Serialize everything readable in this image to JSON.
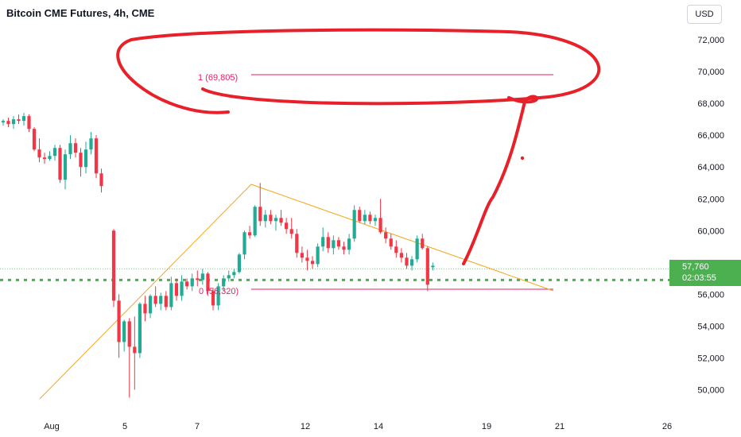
{
  "header": {
    "title": "Bitcoin CME Futures, 4h, CME",
    "currency_button": "USD"
  },
  "price_tag": {
    "price": "57,760",
    "countdown": "02:03:55"
  },
  "colors": {
    "up": "#22ab94",
    "down": "#f23645",
    "trendline": "#f7a520",
    "fib": "#e91e63",
    "current_price_line": "#4caf50",
    "annotation": "#e8202a"
  },
  "fib_labels": {
    "level1": "1 (69,805)",
    "level0": "0 (56,320)"
  },
  "chart_data": {
    "type": "candlestick",
    "title": "Bitcoin CME Futures, 4h, CME",
    "x_ticks": [
      "Aug",
      "5",
      "7",
      "12",
      "14",
      "19",
      "21",
      "26"
    ],
    "y_ticks": [
      "50,000",
      "52,000",
      "54,000",
      "56,000",
      "58,000",
      "60,000",
      "62,000",
      "64,000",
      "66,000",
      "68,000",
      "70,000",
      "72,000"
    ],
    "ylim": [
      49000,
      73000
    ],
    "current_price": 57760,
    "fib_levels": [
      {
        "label": "1 (69,805)",
        "price": 69805
      },
      {
        "label": "0 (56,320)",
        "price": 56320
      }
    ],
    "candles": [
      [
        66.8,
        67.0,
        66.6,
        66.9
      ],
      [
        66.9,
        67.1,
        66.5,
        66.7
      ],
      [
        66.7,
        67.2,
        66.4,
        67.0
      ],
      [
        67.0,
        67.3,
        66.7,
        66.9
      ],
      [
        66.9,
        67.4,
        66.6,
        67.2
      ],
      [
        67.2,
        67.3,
        66.2,
        66.4
      ],
      [
        66.4,
        66.5,
        65.0,
        65.1
      ],
      [
        65.1,
        65.8,
        64.3,
        64.6
      ],
      [
        64.6,
        64.9,
        64.2,
        64.5
      ],
      [
        64.5,
        65.0,
        64.4,
        64.7
      ],
      [
        64.7,
        65.4,
        64.4,
        65.2
      ],
      [
        65.2,
        65.4,
        63.0,
        63.2
      ],
      [
        63.2,
        65.1,
        62.6,
        64.8
      ],
      [
        64.8,
        66.0,
        64.5,
        65.5
      ],
      [
        65.5,
        65.8,
        64.6,
        64.9
      ],
      [
        64.9,
        65.2,
        63.4,
        64.0
      ],
      [
        64.0,
        65.6,
        63.6,
        65.1
      ],
      [
        65.1,
        66.2,
        64.8,
        65.8
      ],
      [
        65.8,
        66.0,
        63.3,
        63.6
      ],
      [
        63.6,
        63.9,
        62.4,
        62.8
      ],
      [
        60.0,
        60.1,
        55.2,
        55.6
      ],
      [
        55.6,
        56.0,
        52.0,
        53.0
      ],
      [
        53.0,
        54.4,
        52.4,
        54.3
      ],
      [
        54.3,
        54.5,
        49.5,
        52.7
      ],
      [
        52.7,
        54.6,
        50.0,
        52.3
      ],
      [
        52.3,
        55.5,
        52.0,
        55.4
      ],
      [
        55.4,
        55.9,
        54.3,
        54.8
      ],
      [
        54.8,
        56.0,
        54.5,
        55.9
      ],
      [
        55.9,
        56.5,
        55.2,
        55.4
      ],
      [
        55.4,
        56.1,
        55.0,
        55.9
      ],
      [
        55.9,
        56.2,
        55.0,
        55.2
      ],
      [
        55.2,
        57.1,
        55.0,
        56.7
      ],
      [
        56.7,
        57.0,
        55.6,
        55.9
      ],
      [
        55.9,
        57.2,
        55.6,
        56.8
      ],
      [
        56.8,
        57.0,
        56.3,
        56.5
      ],
      [
        56.5,
        57.3,
        56.2,
        57.0
      ],
      [
        57.0,
        57.5,
        56.5,
        56.9
      ],
      [
        56.9,
        57.6,
        56.6,
        57.3
      ],
      [
        57.3,
        57.4,
        56.0,
        56.2
      ],
      [
        56.2,
        56.4,
        55.0,
        55.3
      ],
      [
        55.3,
        56.7,
        55.0,
        56.5
      ],
      [
        56.5,
        57.2,
        56.2,
        57.0
      ],
      [
        57.0,
        57.5,
        56.8,
        57.2
      ],
      [
        57.2,
        57.6,
        57.0,
        57.4
      ],
      [
        57.4,
        58.6,
        57.3,
        58.5
      ],
      [
        58.5,
        60.0,
        58.2,
        59.9
      ],
      [
        59.9,
        60.3,
        59.5,
        59.7
      ],
      [
        59.7,
        61.6,
        59.6,
        61.5
      ],
      [
        61.5,
        63.0,
        60.3,
        60.6
      ],
      [
        60.6,
        61.3,
        60.2,
        61.0
      ],
      [
        61.0,
        61.3,
        60.4,
        60.6
      ],
      [
        60.6,
        61.0,
        60.0,
        60.8
      ],
      [
        60.8,
        61.3,
        60.3,
        60.5
      ],
      [
        60.5,
        60.8,
        59.8,
        60.1
      ],
      [
        60.1,
        60.8,
        59.5,
        59.8
      ],
      [
        59.8,
        60.1,
        58.3,
        58.6
      ],
      [
        58.6,
        59.0,
        58.0,
        58.3
      ],
      [
        58.3,
        58.8,
        57.5,
        58.1
      ],
      [
        58.1,
        58.4,
        57.6,
        57.9
      ],
      [
        57.9,
        59.2,
        57.7,
        59.0
      ],
      [
        59.0,
        60.2,
        58.7,
        59.6
      ],
      [
        59.6,
        59.9,
        58.6,
        58.9
      ],
      [
        58.9,
        59.7,
        58.5,
        59.4
      ],
      [
        59.4,
        59.6,
        58.8,
        59.0
      ],
      [
        59.0,
        59.3,
        58.5,
        58.8
      ],
      [
        58.8,
        59.8,
        58.5,
        59.5
      ],
      [
        59.5,
        61.6,
        59.3,
        61.3
      ],
      [
        61.3,
        61.5,
        60.5,
        60.6
      ],
      [
        60.6,
        61.3,
        60.4,
        61.0
      ],
      [
        61.0,
        61.2,
        60.4,
        60.6
      ],
      [
        60.6,
        61.0,
        60.3,
        60.8
      ],
      [
        60.8,
        62.0,
        59.8,
        59.9
      ],
      [
        59.9,
        60.2,
        59.2,
        59.5
      ],
      [
        59.5,
        59.8,
        58.8,
        59.0
      ],
      [
        59.0,
        59.4,
        58.3,
        58.6
      ],
      [
        58.6,
        58.9,
        58.0,
        58.3
      ],
      [
        58.3,
        58.6,
        57.6,
        57.8
      ],
      [
        57.8,
        58.4,
        57.5,
        58.2
      ],
      [
        58.2,
        59.7,
        58.0,
        59.5
      ],
      [
        59.5,
        59.8,
        58.8,
        58.9
      ],
      [
        58.9,
        59.0,
        56.2,
        56.6
      ],
      [
        57.7,
        58.0,
        57.5,
        57.8
      ]
    ],
    "candle_units": "thousands USD, [open, high, low, close]"
  }
}
